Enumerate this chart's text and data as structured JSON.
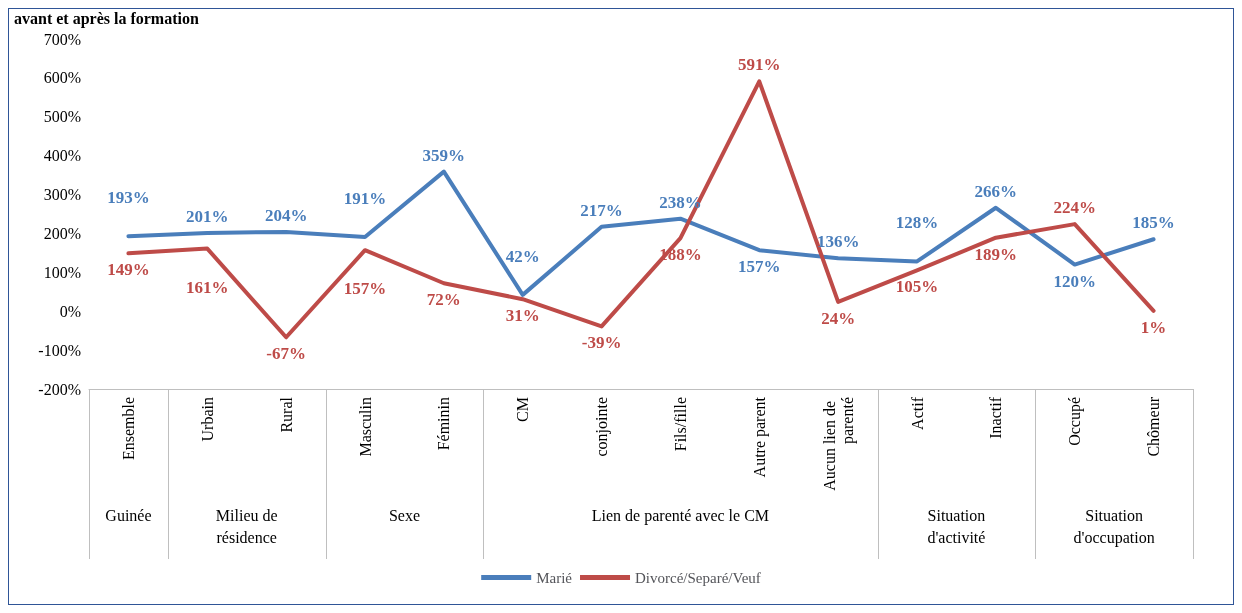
{
  "chart_data": {
    "type": "line",
    "title": "avant et après la formation",
    "categories": [
      "Ensemble",
      "Urbain",
      "Rural",
      "Masculin",
      "Féminin",
      "CM",
      "conjointe",
      "Fils/fille",
      "Autre parent",
      "Aucun lien de parenté",
      "Actif",
      "Inactif",
      "Occupé",
      "Chômeur"
    ],
    "series": [
      {
        "name": "Marié",
        "color": "#4a7ebb",
        "values": [
          193,
          201,
          204,
          191,
          359,
          42,
          217,
          238,
          157,
          136,
          128,
          266,
          120,
          185
        ],
        "value_labels": [
          "193%",
          "201%",
          "204%",
          "191%",
          "359%",
          "42%",
          "217%",
          "238%",
          "157%",
          "136%",
          "128%",
          "266%",
          "120%",
          "185%"
        ]
      },
      {
        "name": "Divorcé/Separé/Veuf",
        "color": "#be4b48",
        "values": [
          149,
          161,
          -67,
          157,
          72,
          31,
          -39,
          188,
          591,
          24,
          105,
          189,
          224,
          1
        ],
        "value_labels": [
          "149%",
          "161%",
          "-67%",
          "157%",
          "72%",
          "31%",
          "-39%",
          "188%",
          "591%",
          "24%",
          "105%",
          "189%",
          "224%",
          "1%"
        ]
      }
    ],
    "ylim": [
      -200,
      700
    ],
    "yticks": [
      {
        "value": -200,
        "label": "-200%"
      },
      {
        "value": -100,
        "label": "-100%"
      },
      {
        "value": 0,
        "label": "0%"
      },
      {
        "value": 100,
        "label": "100%"
      },
      {
        "value": 200,
        "label": "200%"
      },
      {
        "value": 300,
        "label": "300%"
      },
      {
        "value": 400,
        "label": "400%"
      },
      {
        "value": 500,
        "label": "500%"
      },
      {
        "value": 600,
        "label": "600%"
      },
      {
        "value": 700,
        "label": "700%"
      }
    ],
    "annotations": [
      "Guinée",
      "Milieu de\nrésidence",
      "Sexe",
      "Lien de parenté avec le CM",
      "Situation\nd'activité",
      "Situation\nd'occupation"
    ],
    "grid": false,
    "legend": "bottom",
    "marker": "none",
    "line_style": "solid"
  }
}
